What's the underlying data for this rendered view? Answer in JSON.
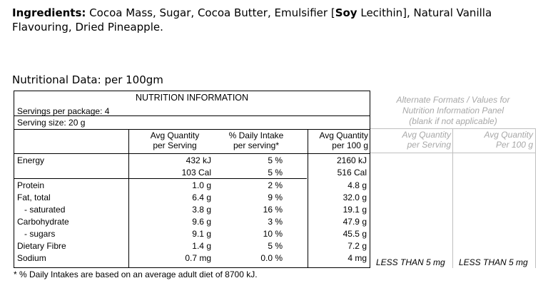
{
  "ingredients": {
    "label": "Ingredients:",
    "text_before_soy": " Cocoa Mass, Sugar, Cocoa Butter, Emulsifier [",
    "soy": "Soy",
    "text_after_soy": " Lecithin], Natural Vanilla Flavouring, Dried Pineapple."
  },
  "nutritional_heading": "Nutritional Data: per 100gm",
  "panel": {
    "title": "NUTRITION INFORMATION",
    "servings_per_package": "Servings per package: 4",
    "serving_size": "Serving size: 20 g",
    "col_serving": [
      "Avg Quantity",
      "per Serving"
    ],
    "col_daily": [
      "% Daily Intake",
      "per serving*"
    ],
    "col_100g": [
      "Avg Quantity",
      "per 100 g"
    ],
    "rows": [
      {
        "label": "Energy",
        "serving": "432 kJ",
        "daily": "5 %",
        "per100": "2160 kJ"
      },
      {
        "label": "",
        "serving": "103 Cal",
        "daily": "5 %",
        "per100": "516 Cal"
      },
      {
        "label": "Protein",
        "serving": "1.0 g",
        "daily": "2 %",
        "per100": "4.8 g"
      },
      {
        "label": "Fat, total",
        "serving": "6.4 g",
        "daily": "9 %",
        "per100": "32.0 g"
      },
      {
        "label": "- saturated",
        "serving": "3.8 g",
        "daily": "16 %",
        "per100": "19.1 g"
      },
      {
        "label": "Carbohydrate",
        "serving": "9.6 g",
        "daily": "3 %",
        "per100": "47.9 g"
      },
      {
        "label": "- sugars",
        "serving": "9.1 g",
        "daily": "10 %",
        "per100": "45.5 g"
      },
      {
        "label": "Dietary Fibre",
        "serving": "1.4 g",
        "daily": "5 %",
        "per100": "7.2 g"
      },
      {
        "label": "Sodium",
        "serving": "0.7 mg",
        "daily": "0.0 %",
        "per100": "4 mg"
      }
    ]
  },
  "alternate": {
    "title_lines": [
      "Alternate Formats / Values for",
      "Nutrition Information Panel",
      "(blank if not applicable)"
    ],
    "col_serving": [
      "Avg Quantity",
      "per Serving"
    ],
    "col_100g": [
      "Avg Quantity",
      "Per 100 g"
    ],
    "sodium_serving": "LESS THAN 5 mg",
    "sodium_100g": "LESS THAN 5 mg"
  },
  "footnote": "* % Daily Intakes are based on an average adult diet of 8700 kJ."
}
